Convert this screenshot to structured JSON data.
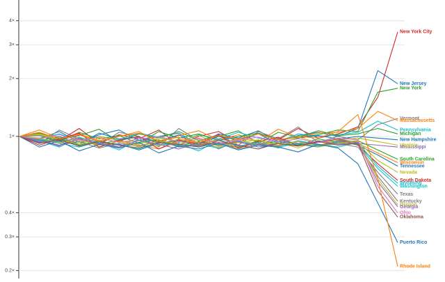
{
  "chart_data": {
    "type": "line",
    "yscale": "log",
    "grid": true,
    "ylim": [
      0.182,
      5.13
    ],
    "yticks": [
      {
        "value": 0.2,
        "label": "0.2×"
      },
      {
        "value": 0.3,
        "label": "0.3×"
      },
      {
        "value": 0.4,
        "label": "0.4×"
      },
      {
        "value": 1,
        "label": "1×"
      },
      {
        "value": 2,
        "label": "2×"
      },
      {
        "value": 3,
        "label": "3×"
      },
      {
        "value": 4,
        "label": "4×"
      }
    ],
    "series": [
      {
        "name": "New York City",
        "color": "#d62728",
        "values": [
          1,
          1.05,
          0.95,
          1.1,
          0.92,
          1.02,
          0.97,
          1.08,
          0.9,
          1.0,
          1.06,
          0.93,
          1.04,
          0.96,
          1.1,
          0.98,
          1.03,
          1.12,
          1.6,
          3.5
        ]
      },
      {
        "name": "New Jersey",
        "color": "#1f77b4",
        "values": [
          1,
          0.97,
          1.06,
          0.93,
          1.02,
          1.08,
          0.95,
          1.0,
          1.04,
          0.91,
          1.03,
          0.98,
          1.07,
          0.94,
          1.01,
          1.05,
          1.0,
          1.1,
          2.2,
          1.88
        ]
      },
      {
        "name": "New York",
        "color": "#2ca02c",
        "values": [
          1,
          1.04,
          0.96,
          1.01,
          1.09,
          0.94,
          1.03,
          0.98,
          1.06,
          0.95,
          1.0,
          1.07,
          0.92,
          1.05,
          0.99,
          1.02,
          1.08,
          1.06,
          1.7,
          1.78
        ]
      },
      {
        "name": "Vermont",
        "color": "#7f7f7f",
        "values": [
          1,
          0.92,
          1.08,
          0.97,
          0.9,
          1.05,
          1.0,
          0.88,
          1.1,
          0.95,
          1.02,
          0.9,
          1.06,
          0.97,
          1.12,
          0.93,
          1.0,
          0.96,
          1.15,
          1.24
        ]
      },
      {
        "name": "Massachusetts",
        "color": "#ff7f0e",
        "values": [
          1,
          1.08,
          0.98,
          1.03,
          0.95,
          1.0,
          1.06,
          0.93,
          1.01,
          1.07,
          0.96,
          1.02,
          0.94,
          1.09,
          0.99,
          1.04,
          1.05,
          1.1,
          1.35,
          1.21
        ]
      },
      {
        "name": "Pennsylvania",
        "color": "#17becf",
        "values": [
          1,
          0.98,
          1.03,
          0.95,
          1.0,
          0.96,
          1.04,
          0.99,
          0.93,
          1.02,
          0.97,
          1.05,
          0.98,
          0.94,
          1.03,
          1.0,
          1.02,
          1.05,
          1.2,
          1.08
        ]
      },
      {
        "name": "Michigan",
        "color": "#2ca02c",
        "values": [
          1,
          1.02,
          0.94,
          1.05,
          0.97,
          1.01,
          0.92,
          1.06,
          0.98,
          1.03,
          0.95,
          1.0,
          1.04,
          0.96,
          0.99,
          1.07,
          1.01,
          1.03,
          1.1,
          1.03
        ]
      },
      {
        "name": "New Hampshire",
        "color": "#1f77b4",
        "values": [
          1,
          0.95,
          1.0,
          0.91,
          1.04,
          0.97,
          0.99,
          0.94,
          1.02,
          0.9,
          1.0,
          0.96,
          1.03,
          0.92,
          0.98,
          1.01,
          0.97,
          1.0,
          0.98,
          0.96
        ]
      },
      {
        "name": "Mississippi",
        "color": "#9467bd",
        "values": [
          1,
          0.96,
          0.89,
          1.02,
          0.94,
          0.88,
          0.99,
          0.93,
          0.9,
          0.97,
          0.86,
          0.95,
          0.91,
          0.98,
          0.89,
          0.94,
          0.96,
          0.92,
          0.9,
          0.88
        ]
      },
      {
        "name": "Virginia",
        "color": "#bcbd22",
        "values": [
          1,
          1.03,
          0.97,
          0.93,
          1.0,
          0.95,
          0.91,
          0.98,
          0.94,
          1.01,
          0.92,
          0.97,
          0.95,
          0.9,
          0.99,
          0.93,
          0.96,
          0.98,
          0.94,
          0.9
        ]
      },
      {
        "name": "South Carolina",
        "color": "#2ca02c",
        "values": [
          1,
          0.94,
          0.98,
          0.9,
          0.95,
          0.87,
          0.93,
          0.96,
          0.89,
          0.94,
          0.91,
          0.88,
          0.95,
          0.92,
          0.9,
          0.97,
          0.93,
          0.95,
          0.85,
          0.76
        ]
      },
      {
        "name": "Wisconsin",
        "color": "#ff7f0e",
        "values": [
          1,
          0.97,
          0.92,
          0.99,
          0.88,
          0.95,
          0.9,
          0.86,
          0.94,
          0.91,
          0.96,
          0.87,
          0.93,
          0.89,
          0.95,
          0.9,
          0.94,
          0.92,
          0.82,
          0.73
        ]
      },
      {
        "name": "Tennessee",
        "color": "#1f77b4",
        "values": [
          1,
          0.93,
          0.97,
          0.89,
          0.94,
          0.91,
          0.85,
          0.92,
          0.96,
          0.88,
          0.93,
          0.9,
          0.86,
          0.94,
          0.91,
          0.88,
          0.95,
          0.9,
          0.8,
          0.7
        ]
      },
      {
        "name": "Nevada",
        "color": "#bcbd22",
        "values": [
          1,
          1.02,
          0.96,
          0.91,
          0.98,
          0.93,
          0.95,
          0.89,
          0.97,
          0.92,
          0.88,
          0.96,
          0.9,
          0.93,
          0.87,
          0.95,
          0.92,
          0.94,
          0.75,
          0.65
        ]
      },
      {
        "name": "South Dakota",
        "color": "#d62728",
        "values": [
          1,
          0.9,
          0.97,
          1.04,
          0.88,
          0.95,
          1.0,
          0.86,
          0.96,
          0.91,
          1.02,
          0.87,
          0.94,
          0.99,
          0.89,
          0.93,
          0.97,
          0.9,
          0.72,
          0.59
        ]
      },
      {
        "name": "Wyoming",
        "color": "#17becf",
        "values": [
          1,
          0.95,
          0.88,
          0.99,
          0.93,
          0.85,
          0.97,
          0.9,
          0.92,
          0.84,
          0.96,
          0.89,
          0.93,
          0.87,
          0.95,
          0.91,
          0.88,
          0.93,
          0.7,
          0.57
        ]
      },
      {
        "name": "Washington",
        "color": "#17becf",
        "values": [
          1,
          0.97,
          0.92,
          0.88,
          0.94,
          0.9,
          0.86,
          0.93,
          0.89,
          0.91,
          0.87,
          0.94,
          0.9,
          0.88,
          0.92,
          0.89,
          0.93,
          0.91,
          0.68,
          0.55
        ]
      },
      {
        "name": "Texas",
        "color": "#7f7f7f",
        "values": [
          1,
          0.96,
          0.9,
          0.94,
          0.87,
          0.92,
          0.89,
          0.95,
          0.88,
          0.9,
          0.93,
          0.86,
          0.91,
          0.89,
          0.94,
          0.9,
          0.92,
          0.88,
          0.65,
          0.5
        ]
      },
      {
        "name": "Kentucky",
        "color": "#7f7f7f",
        "values": [
          1,
          1.01,
          0.94,
          0.98,
          0.91,
          0.96,
          0.99,
          0.92,
          0.95,
          0.89,
          0.97,
          0.93,
          0.9,
          0.96,
          0.92,
          0.94,
          0.97,
          0.93,
          0.62,
          0.46
        ]
      },
      {
        "name": "Oregon",
        "color": "#bcbd22",
        "values": [
          1,
          0.98,
          0.93,
          0.96,
          0.9,
          0.94,
          0.88,
          0.95,
          0.91,
          0.97,
          0.89,
          0.93,
          0.96,
          0.9,
          0.94,
          0.88,
          0.92,
          0.95,
          0.6,
          0.44
        ]
      },
      {
        "name": "Georgia",
        "color": "#9467bd",
        "values": [
          1,
          0.94,
          0.9,
          0.97,
          0.92,
          0.88,
          0.95,
          0.91,
          0.86,
          0.93,
          0.9,
          0.94,
          0.88,
          0.92,
          0.89,
          0.95,
          0.91,
          0.93,
          0.58,
          0.43
        ]
      },
      {
        "name": "Ohio",
        "color": "#e377c2",
        "values": [
          1,
          0.97,
          1.02,
          0.95,
          0.99,
          0.93,
          0.97,
          1.0,
          0.94,
          0.98,
          0.92,
          0.96,
          0.99,
          0.94,
          0.97,
          0.93,
          0.98,
          0.96,
          0.55,
          0.4
        ]
      },
      {
        "name": "Oklahoma",
        "color": "#8c564b",
        "values": [
          1,
          0.92,
          0.96,
          0.89,
          0.94,
          0.9,
          0.87,
          0.93,
          0.91,
          0.88,
          0.95,
          0.9,
          0.86,
          0.92,
          0.89,
          0.94,
          0.9,
          0.92,
          0.52,
          0.38
        ]
      },
      {
        "name": "Puerto Rico",
        "color": "#1f77b4",
        "values": [
          1,
          0.88,
          0.95,
          0.84,
          0.91,
          0.87,
          0.93,
          0.82,
          0.89,
          0.86,
          0.92,
          0.85,
          0.9,
          0.88,
          0.83,
          0.91,
          0.87,
          0.72,
          0.45,
          0.28
        ]
      },
      {
        "name": "Rhode Island",
        "color": "#ff7f0e",
        "values": [
          1,
          1.05,
          0.97,
          1.02,
          0.94,
          1.0,
          1.04,
          0.95,
          0.99,
          0.93,
          1.01,
          0.97,
          1.03,
          0.96,
          1.0,
          0.98,
          1.06,
          1.3,
          0.6,
          0.21
        ]
      }
    ]
  }
}
